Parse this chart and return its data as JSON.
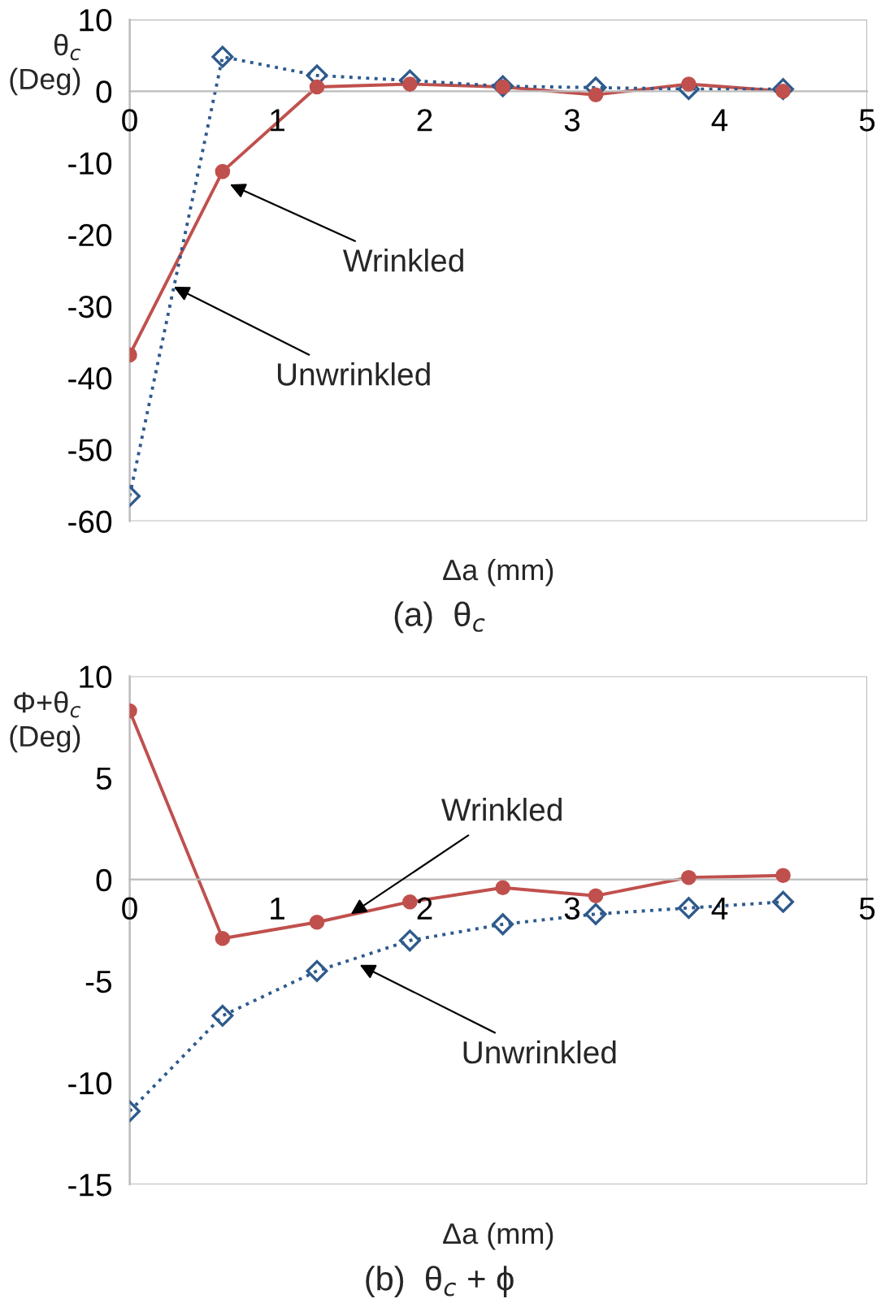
{
  "chart_data": [
    {
      "type": "line",
      "title": "(a)  θ$_{c}$",
      "xlabel": "Δa (mm)",
      "ylabel": "θ$_{c}$\n(Deg)",
      "x": [
        0,
        0.63,
        1.27,
        1.9,
        2.53,
        3.16,
        3.79,
        4.43
      ],
      "series": [
        {
          "color": "#c0504d",
          "marker": "circle",
          "line_style": "solid",
          "values": [
            -36.8,
            -11.2,
            0.6,
            1.0,
            0.6,
            -0.5,
            1.0,
            0.0
          ]
        },
        {
          "color": "#2e5a8c",
          "marker": "diamond",
          "line_style": "dotted",
          "values": [
            -56.5,
            4.8,
            2.2,
            1.5,
            0.7,
            0.5,
            0.3,
            0.3
          ]
        }
      ],
      "annotations": [
        {
          "text": "Wrinkled",
          "x": 0.68,
          "y": -13
        },
        {
          "text": "Unwrinkled",
          "x": 0.3,
          "y": -27.3
        }
      ],
      "xlim": [
        0,
        5
      ],
      "xticks": [
        0,
        1,
        2,
        3,
        4,
        5
      ],
      "ylim": [
        -60,
        10
      ],
      "yticks": [
        -60,
        -50,
        -40,
        -30,
        -20,
        -10,
        0,
        10
      ],
      "grid": false
    },
    {
      "type": "line",
      "title": "(b)  θ$_{c}$ + ϕ",
      "xlabel": "Δa (mm)",
      "ylabel": "Φ+θ$_{c}$\n(Deg)",
      "x": [
        0,
        0.63,
        1.27,
        1.9,
        2.53,
        3.16,
        3.79,
        4.43
      ],
      "series": [
        {
          "color": "#c0504d",
          "marker": "circle",
          "line_style": "solid",
          "values": [
            8.3,
            -2.9,
            -2.1,
            -1.1,
            -0.4,
            -0.8,
            0.1,
            0.2
          ]
        },
        {
          "color": "#2e5a8c",
          "marker": "diamond",
          "line_style": "dotted",
          "values": [
            -11.4,
            -6.7,
            -4.5,
            -3.0,
            -2.2,
            -1.7,
            -1.4,
            -1.1
          ]
        }
      ],
      "annotations": [
        {
          "text": "Wrinkled",
          "x": 1.5,
          "y": -1.7
        },
        {
          "text": "Unwrinkled",
          "x": 1.56,
          "y": -4.2
        }
      ],
      "xlim": [
        0,
        5
      ],
      "xticks": [
        0,
        1,
        2,
        3,
        4,
        5
      ],
      "ylim": [
        -15,
        10
      ],
      "yticks": [
        -15,
        -10,
        -5,
        0,
        5,
        10
      ],
      "grid": false
    }
  ]
}
